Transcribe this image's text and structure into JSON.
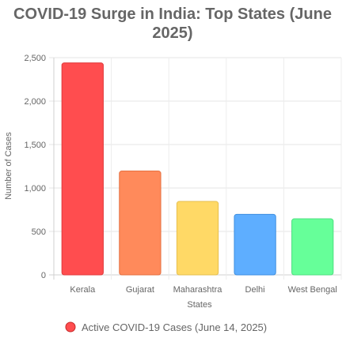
{
  "chart_data": {
    "type": "bar",
    "title_lines": [
      "COVID-19 Surge in India: Top States (June",
      "2025)"
    ],
    "categories": [
      "Kerala",
      "Gujarat",
      "Maharashtra",
      "Delhi",
      "West Bengal"
    ],
    "series": [
      {
        "name": "Active COVID-19 Cases (June 14, 2025)",
        "values": [
          2440,
          1195,
          845,
          697,
          645
        ]
      }
    ],
    "xlabel": "States",
    "ylabel": "Number of Cases",
    "ylim": [
      0,
      2500
    ],
    "yticks": [
      0,
      500,
      1000,
      1500,
      2000,
      2500
    ],
    "ytick_labels": [
      "0",
      "500",
      "1,000",
      "1,500",
      "2,000",
      "2,500"
    ],
    "grid": true,
    "legend_position": "bottom",
    "bar_colors": [
      "#ff4d4f",
      "#ff8a5b",
      "#ffd966",
      "#5eaeff",
      "#66ff99"
    ],
    "bar_border_colors": [
      "#e03a3c",
      "#e67040",
      "#e6bf4d",
      "#3f8fe0",
      "#4ddf80"
    ],
    "legend_swatch_color": "#ff4d4f",
    "legend_swatch_border": "#c62828"
  }
}
